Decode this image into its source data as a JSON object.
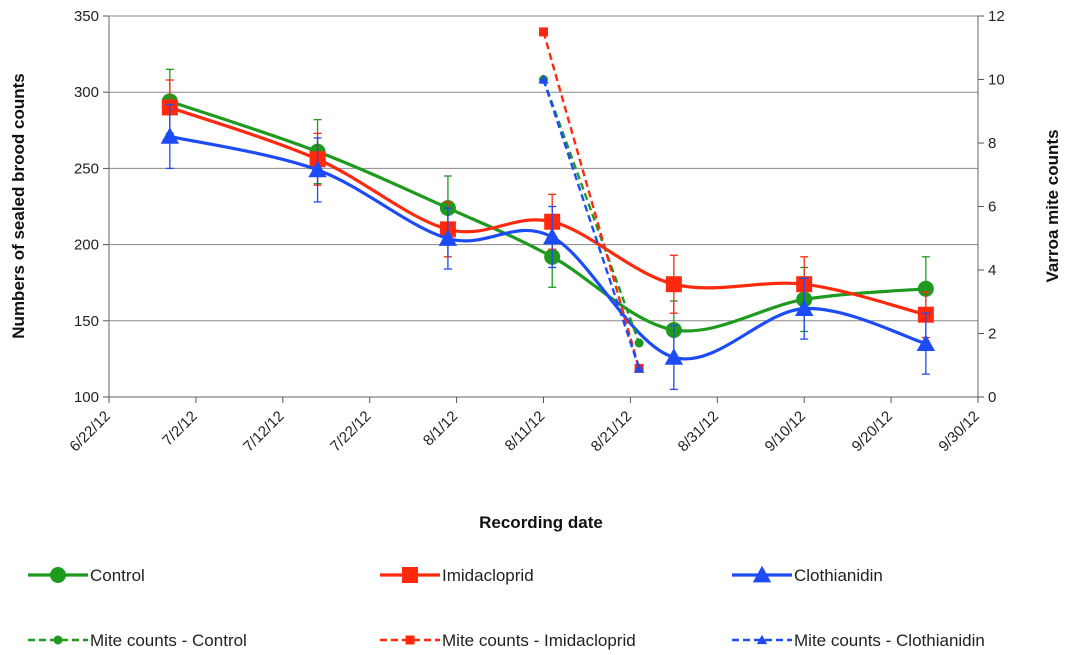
{
  "chart_data": {
    "type": "line",
    "xlabel": "Recording date",
    "ylabel": "Numbers of sealed brood counts",
    "y2label": "Varroa mite counts",
    "x_axis": {
      "min": "2012-06-22",
      "max": "2012-09-30",
      "tick_dates": [
        "2012-06-22",
        "2012-07-02",
        "2012-07-12",
        "2012-07-22",
        "2012-08-01",
        "2012-08-11",
        "2012-08-21",
        "2012-08-31",
        "2012-09-10",
        "2012-09-20",
        "2012-09-30"
      ],
      "tick_labels": [
        "6/22/12",
        "7/2/12",
        "7/12/12",
        "7/22/12",
        "8/1/12",
        "8/11/12",
        "8/21/12",
        "8/31/12",
        "9/10/12",
        "9/20/12",
        "9/30/12"
      ]
    },
    "y_axis": {
      "min": 100,
      "max": 350,
      "ticks": [
        100,
        150,
        200,
        250,
        300,
        350
      ],
      "tick_labels": [
        "100",
        "150",
        "200",
        "250",
        "300",
        "350"
      ]
    },
    "y2_axis": {
      "min": 0,
      "max": 12,
      "ticks": [
        0,
        2,
        4,
        6,
        8,
        10,
        12
      ],
      "tick_labels": [
        "0",
        "2",
        "4",
        "6",
        "8",
        "10",
        "12"
      ]
    },
    "grid": true,
    "legend_position": "bottom",
    "series": [
      {
        "name": "Control",
        "axis": "left",
        "style": "solid",
        "marker": "circle",
        "color": "#1e9a1e",
        "x": [
          "2012-06-29",
          "2012-07-16",
          "2012-07-31",
          "2012-08-12",
          "2012-08-26",
          "2012-09-10",
          "2012-09-24"
        ],
        "y": [
          294,
          261,
          224,
          192,
          144,
          164,
          171
        ],
        "err": [
          21,
          21,
          21,
          20,
          19,
          21,
          21
        ]
      },
      {
        "name": "Imidacloprid",
        "axis": "left",
        "style": "solid",
        "marker": "square",
        "color": "#ff2a0e",
        "x": [
          "2012-06-29",
          "2012-07-16",
          "2012-07-31",
          "2012-08-12",
          "2012-08-26",
          "2012-09-10",
          "2012-09-24"
        ],
        "y": [
          290,
          256,
          210,
          215,
          174,
          174,
          154
        ],
        "err": [
          18,
          17,
          18,
          18,
          19,
          18,
          15
        ]
      },
      {
        "name": "Clothianidin",
        "axis": "left",
        "style": "solid",
        "marker": "triangle",
        "color": "#1d4bf5",
        "x": [
          "2012-06-29",
          "2012-07-16",
          "2012-07-31",
          "2012-08-12",
          "2012-08-26",
          "2012-09-10",
          "2012-09-24"
        ],
        "y": [
          271,
          249,
          204,
          205,
          126,
          158,
          135
        ],
        "err": [
          21,
          21,
          20,
          20,
          21,
          20,
          20
        ]
      },
      {
        "name": "Mite counts - Control",
        "axis": "right",
        "style": "dashed",
        "marker": "circle",
        "color": "#1e9a1e",
        "x": [
          "2012-08-11",
          "2012-08-22"
        ],
        "y": [
          10.0,
          1.7
        ],
        "err": [
          0,
          0
        ]
      },
      {
        "name": "Mite counts - Imidacloprid",
        "axis": "right",
        "style": "dashed",
        "marker": "square",
        "color": "#ff2a0e",
        "x": [
          "2012-08-11",
          "2012-08-22"
        ],
        "y": [
          11.5,
          0.9
        ],
        "err": [
          0,
          0
        ]
      },
      {
        "name": "Mite counts - Clothianidin",
        "axis": "right",
        "style": "dashed",
        "marker": "triangle",
        "color": "#1d4bf5",
        "x": [
          "2012-08-11",
          "2012-08-22"
        ],
        "y": [
          10.0,
          0.9
        ],
        "err": [
          0,
          0
        ]
      }
    ],
    "legend_rows": [
      [
        "Control",
        "Imidacloprid",
        "Clothianidin"
      ],
      [
        "Mite counts - Control",
        "Mite counts - Imidacloprid",
        "Mite counts - Clothianidin"
      ]
    ]
  }
}
